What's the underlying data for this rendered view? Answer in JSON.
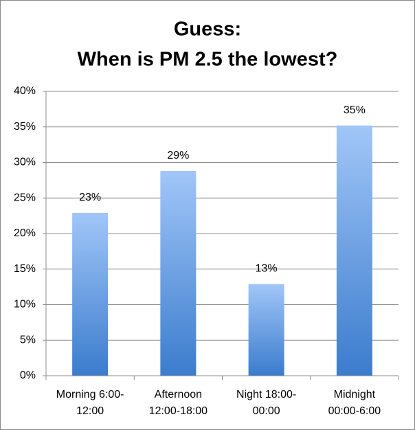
{
  "chart_data": {
    "type": "bar",
    "title": [
      "Guess:",
      "When is PM 2.5 the lowest?"
    ],
    "categories": [
      [
        "Morning 6:00-",
        "12:00"
      ],
      [
        "Afternoon",
        "12:00-18:00"
      ],
      [
        "Night 18:00-",
        "00:00"
      ],
      [
        "Midnight",
        "00:00-6:00"
      ]
    ],
    "values": [
      22.9,
      28.8,
      12.9,
      35.2
    ],
    "value_labels": [
      "23%",
      "29%",
      "13%",
      "35%"
    ],
    "color": "#4a86d6",
    "ylim": [
      0,
      40
    ],
    "yticks": [
      {
        "value": 0,
        "label": "0%"
      },
      {
        "value": 5,
        "label": "5%"
      },
      {
        "value": 10,
        "label": "10%"
      },
      {
        "value": 15,
        "label": "15%"
      },
      {
        "value": 20,
        "label": "20%"
      },
      {
        "value": 25,
        "label": "25%"
      },
      {
        "value": 30,
        "label": "30%"
      },
      {
        "value": 35,
        "label": "35%"
      },
      {
        "value": 40,
        "label": "40%"
      }
    ],
    "grid": true
  }
}
